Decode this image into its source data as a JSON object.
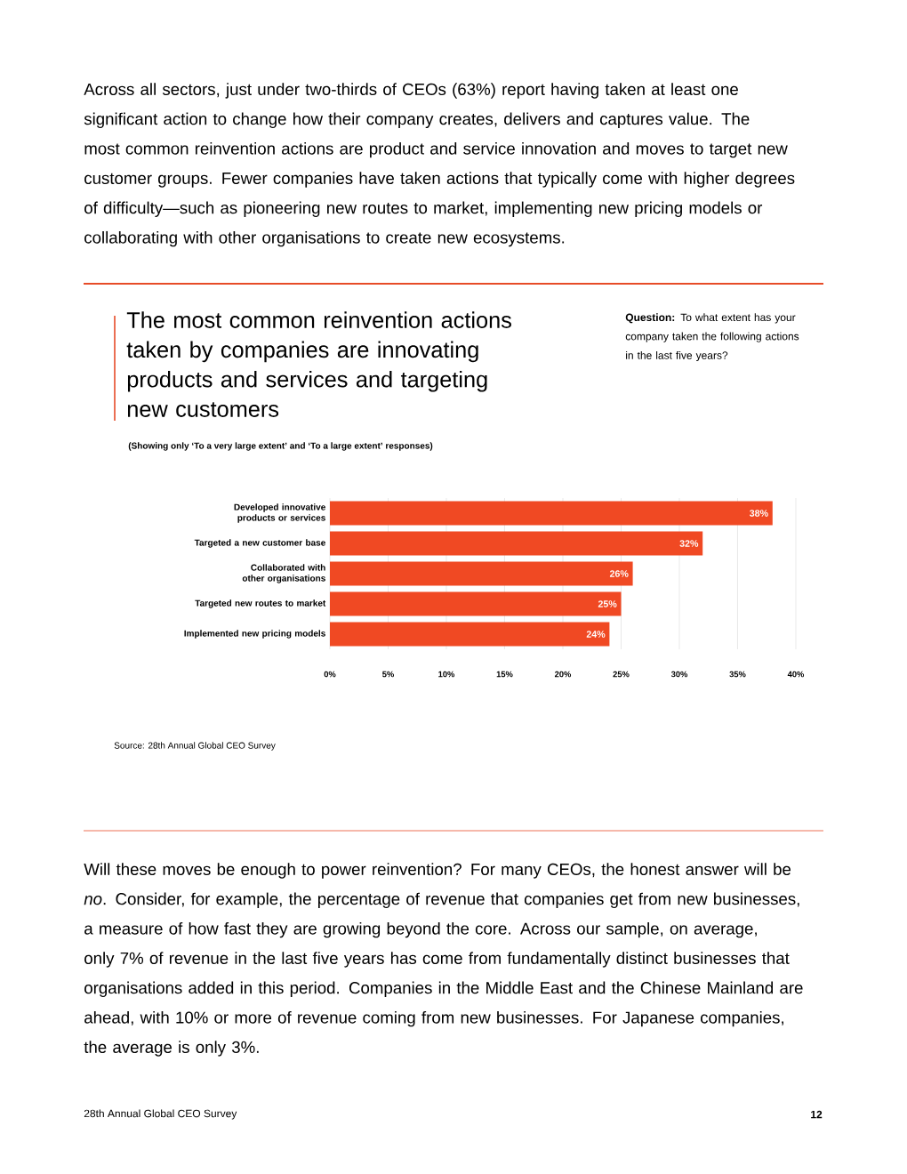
{
  "chart_data": {
    "type": "bar",
    "orientation": "horizontal",
    "title": "The most common reinvention actions taken by companies are innovating products and services and targeting new customers",
    "subtitle": "(Showing only ‘To a very large extent’ and ‘To a large extent’ responses)",
    "categories": [
      "Developed innovative products or services",
      "Targeted a new customer base",
      "Collaborated with other organisations",
      "Targeted new routes to market",
      "Implemented new pricing models"
    ],
    "values": [
      38,
      32,
      26,
      25,
      24
    ],
    "value_labels": [
      "38%",
      "32%",
      "26%",
      "25%",
      "24%"
    ],
    "color": "#f04923",
    "xlim": [
      0,
      40
    ],
    "xticks": [
      {
        "value": 0,
        "label": "0%"
      },
      {
        "value": 5,
        "label": "5%"
      },
      {
        "value": 10,
        "label": "10%"
      },
      {
        "value": 15,
        "label": "15%"
      },
      {
        "value": 20,
        "label": "20%"
      },
      {
        "value": 25,
        "label": "25%"
      },
      {
        "value": 30,
        "label": "30%"
      },
      {
        "value": 35,
        "label": "35%"
      },
      {
        "value": 40,
        "label": "40%"
      }
    ],
    "grid": "x",
    "annotations": [
      "Across all sectors, just under two-thirds of CEOs (63%) report having taken at least one significant action to change how their company creates, delivers and captures value. The most common reinvention actions are product and service innovation and moves to target new customer groups. Fewer companies have taken actions that typically come with higher degrees of difficulty—such as pioneering new routes to market, implementing new pricing models or collaborating with other organisations to create new ecosystems.",
      "**Question:** To what extent has your company taken the following actions in the last five years?",
      "Source: 28th Annual Global CEO Survey",
      "Will these moves be enough to power reinvention? For many CEOs, the honest answer will be *no*. Consider, for example, the percentage of revenue that companies get from new businesses, a measure of how fast they are growing beyond the core. Across our sample, on average, only 7% of revenue in the last five years has come from fundamentally distinct businesses that organisations added in this period. Companies in the Middle East and the Chinese Mainland are ahead, with 10% or more of revenue coming from new businesses. For Japanese companies, the average is only 3%.",
      "28th Annual Global CEO Survey",
      "12"
    ]
  }
}
